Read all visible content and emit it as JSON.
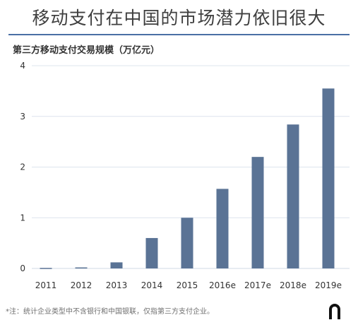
{
  "chart_data": {
    "type": "bar",
    "title": "移动支付在中国的市场潜力依旧很大",
    "subtitle": "第三方移动支付交易规模（万亿元）",
    "categories": [
      "2011",
      "2012",
      "2013",
      "2014",
      "2015",
      "2016e",
      "2017e",
      "2018e",
      "2019e"
    ],
    "values": [
      0.01,
      0.02,
      0.12,
      0.6,
      1.0,
      1.57,
      2.2,
      2.84,
      3.55
    ],
    "ylim": [
      0,
      4
    ],
    "yticks": [
      "0",
      "1",
      "2",
      "3",
      "4"
    ],
    "grid": true,
    "bar_color": "#5a7395",
    "grid_color": "#dde4ee",
    "footnote": "*注：统计企业类型中不含银行和中国银联，仅指第三方支付企业。"
  }
}
